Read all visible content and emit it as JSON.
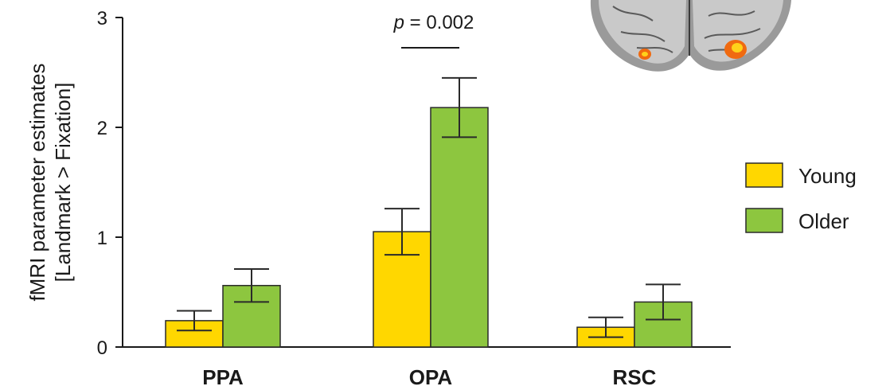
{
  "chart_data": {
    "type": "bar",
    "categories": [
      "PPA",
      "OPA",
      "RSC"
    ],
    "series": [
      {
        "name": "Young",
        "color": "#FFD700",
        "values": [
          0.24,
          1.05,
          0.18
        ],
        "errors": [
          0.09,
          0.21,
          0.09
        ]
      },
      {
        "name": "Older",
        "color": "#8DC63F",
        "values": [
          0.56,
          2.18,
          0.41
        ],
        "errors": [
          0.15,
          0.27,
          0.16
        ]
      }
    ],
    "ylabel_line1": "fMRI parameter estimates",
    "ylabel_line2": "[Landmark > Fixation]",
    "ylim": [
      0,
      3
    ],
    "yticks": [
      "0",
      "1",
      "2",
      "3"
    ],
    "annotation": {
      "p_symbol": "p",
      "text": " = 0.002",
      "category": "OPA"
    },
    "legend_position": "right",
    "grid": false,
    "inset_image": "brain-activation-map"
  }
}
